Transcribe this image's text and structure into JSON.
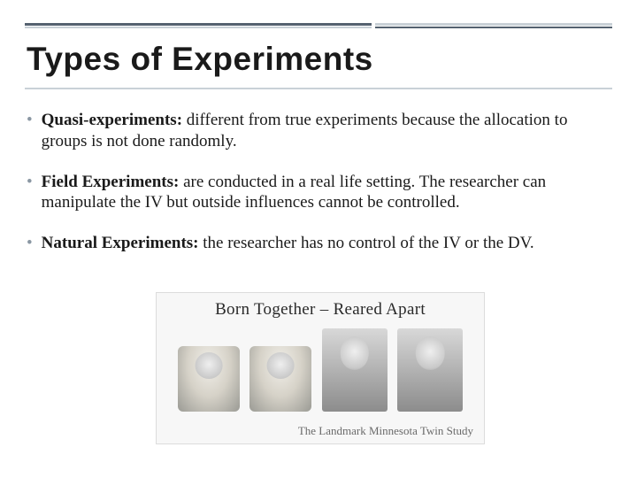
{
  "title": "Types of Experiments",
  "bullets": [
    {
      "term": "Quasi-experiments:",
      "desc": "  different from true experiments because the allocation to groups is not done randomly."
    },
    {
      "term": "Field Experiments:",
      "desc": "  are conducted in a real life setting.  The researcher can manipulate the IV but outside influences cannot be controlled."
    },
    {
      "term": "Natural Experiments:",
      "desc": "  the researcher has no control of the IV or the DV."
    }
  ],
  "image": {
    "heading_a": "Born Together",
    "heading_sep": "–",
    "heading_b": "Reared Apart",
    "caption": "The Landmark Minnesota Twin Study"
  },
  "colors": {
    "rule_dark": "#556270",
    "rule_light": "#c9d1d7",
    "bullet_marker": "#8a97a3",
    "text": "#1a1a1a"
  }
}
